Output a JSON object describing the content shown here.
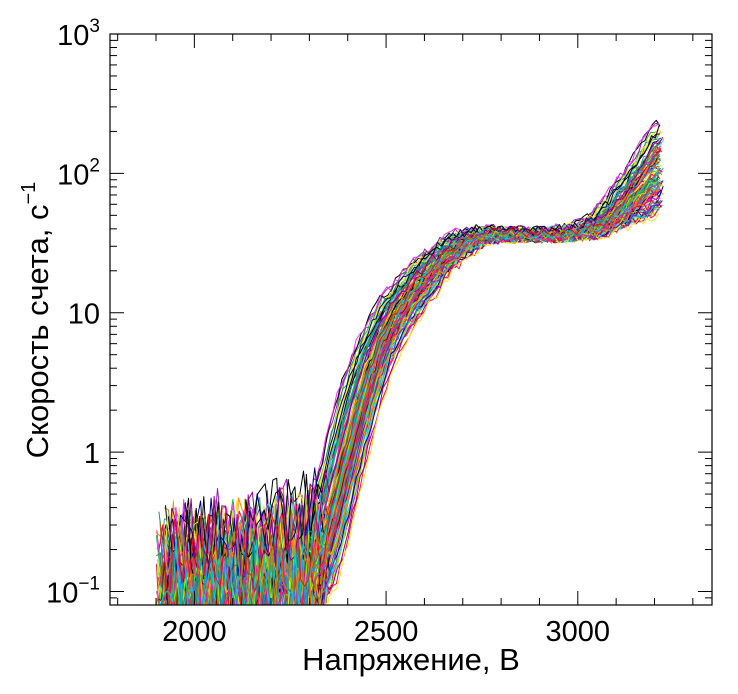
{
  "chart_data": {
    "type": "line",
    "title": "",
    "xlabel": "Напряжение, В",
    "ylabel": "Скорость счета, с",
    "ylabel_superscript": "−1",
    "x_scale": "linear",
    "y_scale": "log",
    "xlim": [
      1780,
      3350
    ],
    "ylim": [
      0.08,
      1000
    ],
    "x_ticks": [
      {
        "value": 2000,
        "label": "2000"
      },
      {
        "value": 2500,
        "label": "2500"
      },
      {
        "value": 3000,
        "label": "3000"
      }
    ],
    "y_ticks": [
      {
        "value": 0.1,
        "base": "10",
        "exp": "−1"
      },
      {
        "value": 1,
        "label": "1"
      },
      {
        "value": 10,
        "label": "10"
      },
      {
        "value": 100,
        "base": "10",
        "exp": "2"
      },
      {
        "value": 1000,
        "base": "10",
        "exp": "3"
      }
    ],
    "grid": false,
    "legend": "none",
    "series_count": 120,
    "x": [
      1900,
      1950,
      2000,
      2050,
      2100,
      2150,
      2200,
      2250,
      2300,
      2325,
      2350,
      2375,
      2400,
      2425,
      2450,
      2475,
      2500,
      2550,
      2600,
      2650,
      2700,
      2750,
      2800,
      2850,
      2900,
      2950,
      3000,
      3050,
      3100,
      3150,
      3200,
      3225
    ],
    "median_curve": [
      0.12,
      0.12,
      0.12,
      0.12,
      0.12,
      0.12,
      0.12,
      0.13,
      0.15,
      0.2,
      0.32,
      0.6,
      1.1,
      2.0,
      3.5,
      5.5,
      8.0,
      13.0,
      19.0,
      26.0,
      32.0,
      36.0,
      37.0,
      36.0,
      36.0,
      37.0,
      38.0,
      41.0,
      52.0,
      75.0,
      105.0,
      120.0
    ],
    "spread_upper": [
      0.25,
      0.25,
      0.26,
      0.27,
      0.28,
      0.3,
      0.32,
      0.35,
      0.38,
      0.5,
      0.9,
      1.8,
      3.2,
      5.0,
      7.0,
      9.5,
      12.5,
      18.0,
      25.0,
      32.0,
      38.0,
      40.0,
      40.0,
      39.0,
      39.0,
      40.0,
      42.0,
      50.0,
      75.0,
      120.0,
      200.0,
      240.0
    ],
    "spread_lower": [
      0.085,
      0.085,
      0.085,
      0.085,
      0.085,
      0.085,
      0.085,
      0.085,
      0.085,
      0.09,
      0.1,
      0.18,
      0.35,
      0.7,
      1.3,
      2.4,
      4.0,
      7.5,
      12.0,
      19.0,
      26.0,
      32.0,
      34.0,
      34.0,
      34.0,
      34.0,
      35.0,
      36.0,
      40.0,
      46.0,
      52.0,
      58.0
    ],
    "colors": [
      "#e6194b",
      "#3cb44b",
      "#ffe119",
      "#4363d8",
      "#f58231",
      "#911eb4",
      "#42d4f4",
      "#f032e6",
      "#bfef45",
      "#469990",
      "#9a6324",
      "#800000",
      "#000075",
      "#000000",
      "#00a0a0",
      "#ff8c00",
      "#7fff00",
      "#1e90ff",
      "#ff1493",
      "#2e8b57",
      "#8b008b",
      "#00ced1",
      "#b8860b",
      "#dc143c"
    ]
  }
}
